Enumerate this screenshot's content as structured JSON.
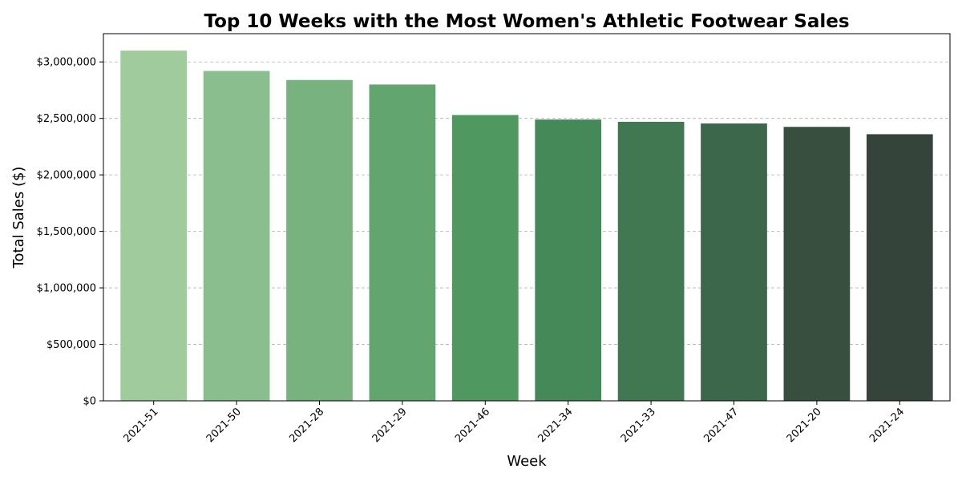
{
  "chart_data": {
    "type": "bar",
    "title": "Top 10 Weeks with the Most Women's Athletic Footwear Sales",
    "xlabel": "Week",
    "ylabel": "Total Sales ($)",
    "categories": [
      "2021-51",
      "2021-50",
      "2021-28",
      "2021-29",
      "2021-46",
      "2021-34",
      "2021-33",
      "2021-47",
      "2021-20",
      "2021-24"
    ],
    "values": [
      3100000,
      2920000,
      2840000,
      2800000,
      2530000,
      2490000,
      2470000,
      2455000,
      2425000,
      2360000
    ],
    "colors": [
      "#a0cb9d",
      "#8bbe8f",
      "#77b27f",
      "#63a56f",
      "#4f985f",
      "#458959",
      "#417852",
      "#3d674b",
      "#384f3f",
      "#35443b"
    ],
    "ylim": [
      0,
      3250000
    ],
    "yticks": [
      0,
      500000,
      1000000,
      1500000,
      2000000,
      2500000,
      3000000
    ],
    "ytick_labels": [
      "$0",
      "$500,000",
      "$1,000,000",
      "$1,500,000",
      "$2,000,000",
      "$2,500,000",
      "$3,000,000"
    ],
    "grid": "y-dashed",
    "legend": "none"
  }
}
